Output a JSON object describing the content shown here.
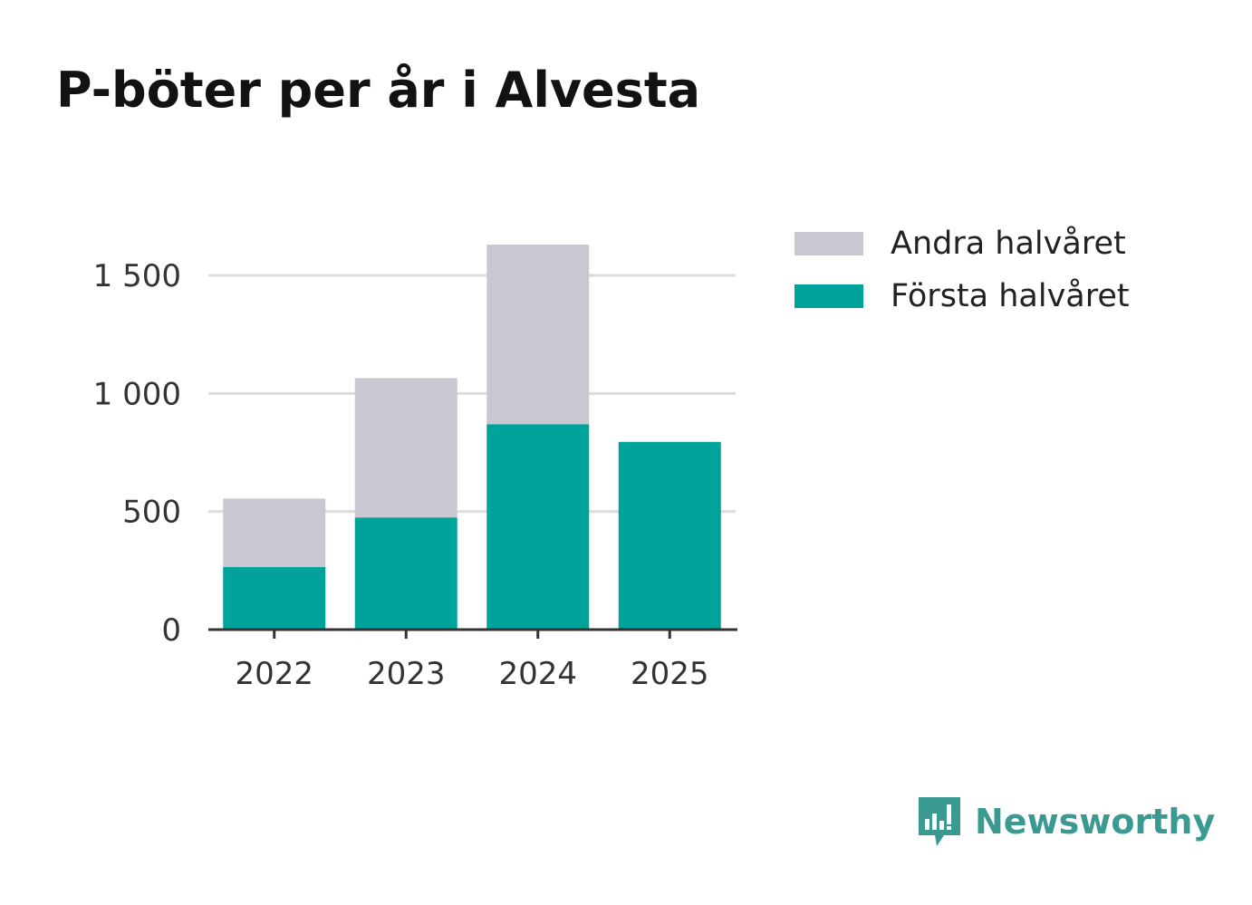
{
  "title": "P-böter per år i Alvesta",
  "brand": {
    "name": "Newsworthy",
    "icon": "newsworthy-logo-icon",
    "color": "#3a9a92"
  },
  "chart_data": {
    "type": "bar",
    "stacked": true,
    "title": "P-böter per år i Alvesta",
    "categories": [
      "2022",
      "2023",
      "2024",
      "2025"
    ],
    "series": [
      {
        "name": "Första halvåret",
        "values": [
          265,
          475,
          870,
          795
        ],
        "color": "#00a39a"
      },
      {
        "name": "Andra halvåret",
        "values": [
          290,
          590,
          760,
          0
        ],
        "color": "#c8c7d2"
      }
    ],
    "yticks": [
      0,
      500,
      1000,
      1500
    ],
    "ytick_labels": [
      "0",
      "500",
      "1 000",
      "1 500"
    ],
    "ylim": [
      0,
      1700
    ],
    "grid": true,
    "legend_position": "top-right",
    "legend_order": [
      "Andra halvåret",
      "Första halvåret"
    ]
  }
}
